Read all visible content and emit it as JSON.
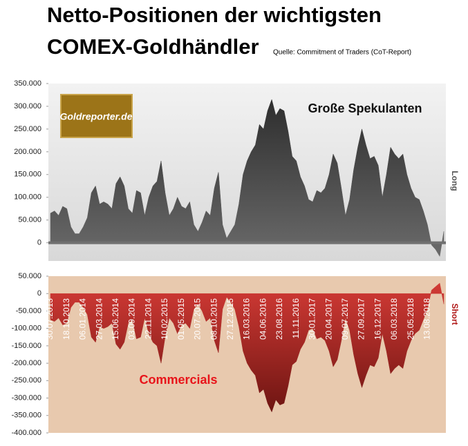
{
  "title": [
    "Netto-Positionen der wichtigsten",
    "COMEX-Goldhändler"
  ],
  "source": "Quelle: Commitment of Traders (CoT-Report)",
  "logo": "Goldreporter.de",
  "chart_data": [
    {
      "type": "area",
      "annotation": "Große Spekulanten",
      "side_label": "Long",
      "color": "#474747",
      "ylim": [
        -40000,
        350000
      ],
      "yticks": [
        0,
        {
          "value": 50000,
          "label": "50.000"
        },
        {
          "value": 100000,
          "label": "100.000"
        },
        {
          "value": 150000,
          "label": "150.000"
        },
        {
          "value": 200000,
          "label": "200.000"
        },
        {
          "value": 250000,
          "label": "250.000"
        },
        {
          "value": 300000,
          "label": "300.000"
        },
        {
          "value": 350000,
          "label": "350.000"
        }
      ],
      "values": [
        65000,
        70000,
        60000,
        80000,
        75000,
        35000,
        20000,
        20000,
        35000,
        55000,
        110000,
        125000,
        85000,
        90000,
        85000,
        75000,
        130000,
        145000,
        125000,
        75000,
        65000,
        115000,
        110000,
        60000,
        100000,
        125000,
        135000,
        180000,
        110000,
        60000,
        75000,
        100000,
        80000,
        75000,
        90000,
        40000,
        25000,
        45000,
        70000,
        60000,
        120000,
        155000,
        40000,
        10000,
        25000,
        40000,
        85000,
        150000,
        180000,
        200000,
        215000,
        260000,
        250000,
        290000,
        315000,
        280000,
        295000,
        290000,
        245000,
        190000,
        180000,
        145000,
        125000,
        95000,
        90000,
        115000,
        110000,
        120000,
        150000,
        195000,
        175000,
        120000,
        60000,
        95000,
        160000,
        210000,
        250000,
        215000,
        185000,
        190000,
        170000,
        100000,
        150000,
        210000,
        195000,
        185000,
        195000,
        150000,
        120000,
        100000,
        95000,
        70000,
        40000,
        -5000,
        -15000,
        -30000,
        25000
      ]
    },
    {
      "type": "area",
      "annotation": "Commercials",
      "side_label": "Short",
      "color": "#b22a2a",
      "ylim": [
        -400000,
        50000
      ],
      "yticks": [
        {
          "value": 50000,
          "label": "50.000"
        },
        0,
        {
          "value": -50000,
          "label": "-50.000"
        },
        {
          "value": -100000,
          "label": "-100.000"
        },
        {
          "value": -150000,
          "label": "-150.000"
        },
        {
          "value": -200000,
          "label": "-200.000"
        },
        {
          "value": -250000,
          "label": "-250.000"
        },
        {
          "value": -300000,
          "label": "-300.000"
        },
        {
          "value": -350000,
          "label": "-350.000"
        },
        {
          "value": -400000,
          "label": "-400.000"
        }
      ],
      "categories": [
        "30.07.2013",
        null,
        null,
        null,
        "18.10.2013",
        null,
        null,
        null,
        "06.01.2014",
        null,
        null,
        null,
        "27.03.2014",
        null,
        null,
        null,
        "15.06.2014",
        null,
        null,
        null,
        "03.09.2014",
        null,
        null,
        null,
        "22.11.2014",
        null,
        null,
        null,
        "10.02.2015",
        null,
        null,
        null,
        "01.05.2015",
        null,
        null,
        null,
        "20.07.2015",
        null,
        null,
        null,
        "08.10.2015",
        null,
        null,
        null,
        "27.12.2015",
        null,
        null,
        null,
        "16.03.2016",
        null,
        null,
        null,
        "04.06.2016",
        null,
        null,
        null,
        "23.08.2016",
        null,
        null,
        null,
        "11.11.2016",
        null,
        null,
        null,
        "30.01.2017",
        null,
        null,
        null,
        "20.04.2017",
        null,
        null,
        null,
        "09.07.2017",
        null,
        null,
        null,
        "27.09.2017",
        null,
        null,
        null,
        "16.12.2017",
        null,
        null,
        null,
        "06.03.2018",
        null,
        null,
        null,
        "25.05.2018",
        null,
        null,
        null,
        "13.08.2018",
        null,
        null,
        null,
        null
      ],
      "values": [
        -75000,
        -80000,
        -70000,
        -90000,
        -85000,
        -40000,
        -25000,
        -25000,
        -40000,
        -60000,
        -125000,
        -140000,
        -95000,
        -100000,
        -95000,
        -85000,
        -145000,
        -160000,
        -140000,
        -85000,
        -75000,
        -130000,
        -125000,
        -70000,
        -115000,
        -140000,
        -150000,
        -200000,
        -125000,
        -70000,
        -85000,
        -115000,
        -90000,
        -85000,
        -100000,
        -45000,
        -30000,
        -50000,
        -80000,
        -70000,
        -135000,
        -170000,
        -45000,
        -10000,
        -25000,
        -45000,
        -95000,
        -165000,
        -200000,
        -220000,
        -235000,
        -285000,
        -275000,
        -315000,
        -340000,
        -305000,
        -320000,
        -315000,
        -265000,
        -205000,
        -195000,
        -160000,
        -140000,
        -105000,
        -100000,
        -130000,
        -125000,
        -135000,
        -165000,
        -210000,
        -190000,
        -135000,
        -70000,
        -105000,
        -175000,
        -230000,
        -270000,
        -235000,
        -205000,
        -210000,
        -185000,
        -115000,
        -165000,
        -230000,
        -215000,
        -205000,
        -215000,
        -165000,
        -135000,
        -115000,
        -105000,
        -75000,
        -45000,
        10000,
        20000,
        30000,
        -30000
      ]
    }
  ]
}
